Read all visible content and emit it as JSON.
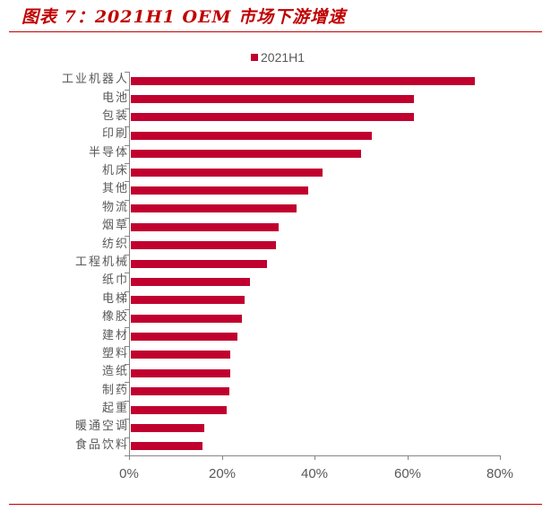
{
  "header": {
    "title": "图表 7：2021H1 OEM 市场下游增速"
  },
  "colors": {
    "bar": "#c0002f",
    "accent": "#c00000",
    "axis": "#868686",
    "text": "#595959"
  },
  "chart_data": {
    "type": "bar",
    "orientation": "horizontal",
    "title": "图表 7：2021H1 OEM 市场下游增速",
    "xlabel": "",
    "ylabel": "",
    "xlim": [
      0,
      80
    ],
    "x_ticks": [
      "0%",
      "20%",
      "40%",
      "60%",
      "80%"
    ],
    "grid": false,
    "legend_position": "top",
    "categories": [
      "工业机器人",
      "电池",
      "包装",
      "印刷",
      "半导体",
      "机床",
      "其他",
      "物流",
      "烟草",
      "纺织",
      "工程机械",
      "纸巾",
      "电梯",
      "橡胶",
      "建材",
      "塑料",
      "造纸",
      "制药",
      "起重",
      "暖通空调",
      "食品饮料"
    ],
    "series": [
      {
        "name": "2021H1",
        "values": [
          74.6,
          61.4,
          61.4,
          52.3,
          50.0,
          41.8,
          38.6,
          36.2,
          32.3,
          31.7,
          29.8,
          26.0,
          24.9,
          24.3,
          23.3,
          21.8,
          21.8,
          21.6,
          21.1,
          16.3,
          15.9
        ]
      }
    ]
  }
}
